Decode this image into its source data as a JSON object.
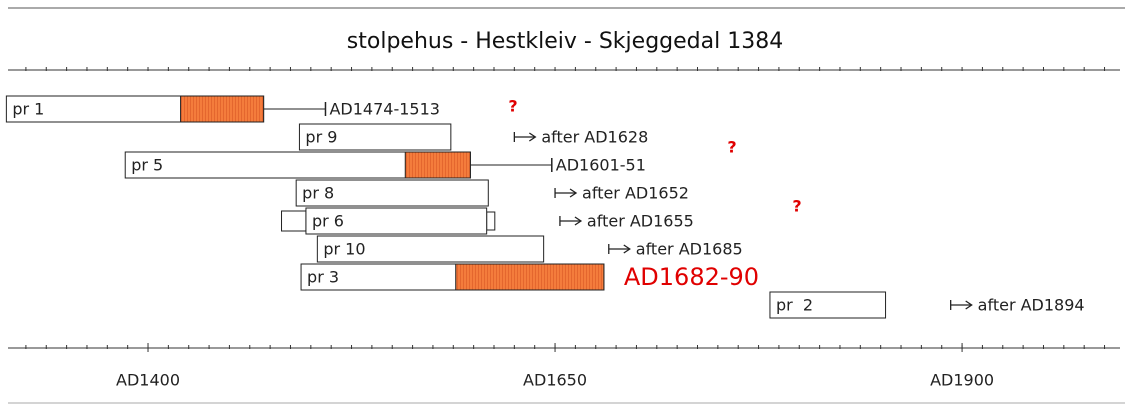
{
  "chart_data": {
    "type": "timeline",
    "title": "stolpehus - Hestkleiv - Skjeggedal 1384",
    "xlim": [
      1314,
      1997
    ],
    "xticks": [
      {
        "value": 1400,
        "label": "AD1400"
      },
      {
        "value": 1650,
        "label": "AD1650"
      },
      {
        "value": 1900,
        "label": "AD1900"
      }
    ],
    "minor_tick_step": 12.5,
    "sapwood_color": "#f47c3c",
    "highlight_color": "#e00000",
    "series": [
      {
        "name": "pr 1",
        "start": 1313,
        "end": 1471,
        "sapwood_start": 1420,
        "whisker_end": 1509,
        "label": "AD1474-1513"
      },
      {
        "name": "pr 9",
        "start": 1493,
        "end": 1586,
        "marker": 1625,
        "label": "after AD1628"
      },
      {
        "name": "pr 5",
        "start": 1386,
        "end": 1598,
        "sapwood_start": 1558,
        "whisker_end": 1648,
        "label": "AD1601-51"
      },
      {
        "name": "pr 8",
        "start": 1491,
        "end": 1609,
        "marker": 1650,
        "label": "after AD1652"
      },
      {
        "name": "pr 6",
        "start": 1497,
        "end": 1608,
        "extra_boxes": [
          [
            1482,
            1497
          ],
          [
            1608,
            1613
          ]
        ],
        "marker": 1653,
        "label": "after AD1655"
      },
      {
        "name": "pr 10",
        "start": 1504,
        "end": 1643,
        "marker": 1683,
        "label": "after AD1685"
      },
      {
        "name": "pr 3",
        "start": 1494,
        "end": 1680,
        "sapwood_start": 1589,
        "label": "AD1682-90",
        "highlight": true
      },
      {
        "name": "pr  2",
        "start": 1782,
        "end": 1853,
        "marker": 1893,
        "label": "after AD1894"
      }
    ],
    "annotations": [
      "?",
      "?",
      "?"
    ]
  }
}
